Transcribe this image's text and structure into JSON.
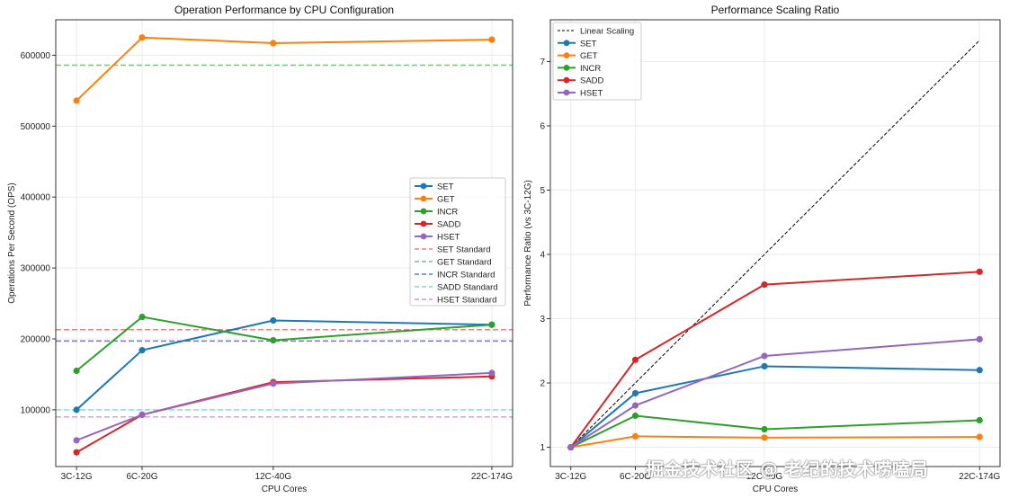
{
  "chart_data": [
    {
      "type": "line",
      "title": "Operation Performance by CPU Configuration",
      "xlabel": "CPU Cores",
      "ylabel": "Operations Per Second (OPS)",
      "x_numeric": [
        3,
        6,
        12,
        22
      ],
      "categories": [
        "3C-12G",
        "6C-20G",
        "12C-40G",
        "22C-174G"
      ],
      "ylim": [
        20000,
        650000
      ],
      "yticks": [
        100000,
        200000,
        300000,
        400000,
        500000,
        600000
      ],
      "ytick_labels": [
        "100000",
        "200000",
        "300000",
        "400000",
        "500000",
        "600000"
      ],
      "grid": true,
      "legend_position": "center-right",
      "series": [
        {
          "name": "SET",
          "color": "#1f77b4",
          "values": [
            100000,
            184000,
            226000,
            220000
          ]
        },
        {
          "name": "GET",
          "color": "#ff7f0e",
          "values": [
            536000,
            625000,
            617000,
            622000
          ]
        },
        {
          "name": "INCR",
          "color": "#2ca02c",
          "values": [
            155000,
            231000,
            198000,
            220000
          ]
        },
        {
          "name": "SADD",
          "color": "#d62728",
          "values": [
            40000,
            93000,
            139000,
            147000
          ]
        },
        {
          "name": "HSET",
          "color": "#9467bd",
          "values": [
            57000,
            93000,
            137000,
            152000
          ]
        }
      ],
      "reference_lines": [
        {
          "name": "SET Standard",
          "color": "#f08080",
          "value": 213000
        },
        {
          "name": "GET Standard",
          "color": "#7fbf7f",
          "value": 586000
        },
        {
          "name": "INCR Standard",
          "color": "#6f6fe8",
          "value": 197000
        },
        {
          "name": "SADD Standard",
          "color": "#7fd8d8",
          "value": 100000
        },
        {
          "name": "HSET Standard",
          "color": "#e090e0",
          "value": 90000
        }
      ]
    },
    {
      "type": "line",
      "title": "Performance Scaling Ratio",
      "xlabel": "CPU Cores",
      "ylabel": "Performance Ratio (vs 3C-12G)",
      "x_numeric": [
        3,
        6,
        12,
        22
      ],
      "categories": [
        "3C-12G",
        "6C-20G",
        "12C-40G",
        "22C-174G"
      ],
      "ylim": [
        0.7,
        7.65
      ],
      "yticks": [
        1,
        2,
        3,
        4,
        5,
        6,
        7
      ],
      "ytick_labels": [
        "1",
        "2",
        "3",
        "4",
        "5",
        "6",
        "7"
      ],
      "grid": true,
      "legend_position": "top-left",
      "linear_scaling": {
        "name": "Linear Scaling",
        "color": "#000000",
        "values": [
          1,
          2,
          4,
          7.33
        ]
      },
      "series": [
        {
          "name": "SET",
          "color": "#1f77b4",
          "values": [
            1,
            1.84,
            2.26,
            2.2
          ]
        },
        {
          "name": "GET",
          "color": "#ff7f0e",
          "values": [
            1,
            1.17,
            1.15,
            1.16
          ]
        },
        {
          "name": "INCR",
          "color": "#2ca02c",
          "values": [
            1,
            1.49,
            1.28,
            1.42
          ]
        },
        {
          "name": "SADD",
          "color": "#d62728",
          "values": [
            1,
            2.36,
            3.53,
            3.73
          ]
        },
        {
          "name": "HSET",
          "color": "#9467bd",
          "values": [
            1,
            1.65,
            2.42,
            2.68
          ]
        }
      ]
    }
  ],
  "watermark": "掘金技术社区 @ 老纪的技术唠嗑局"
}
